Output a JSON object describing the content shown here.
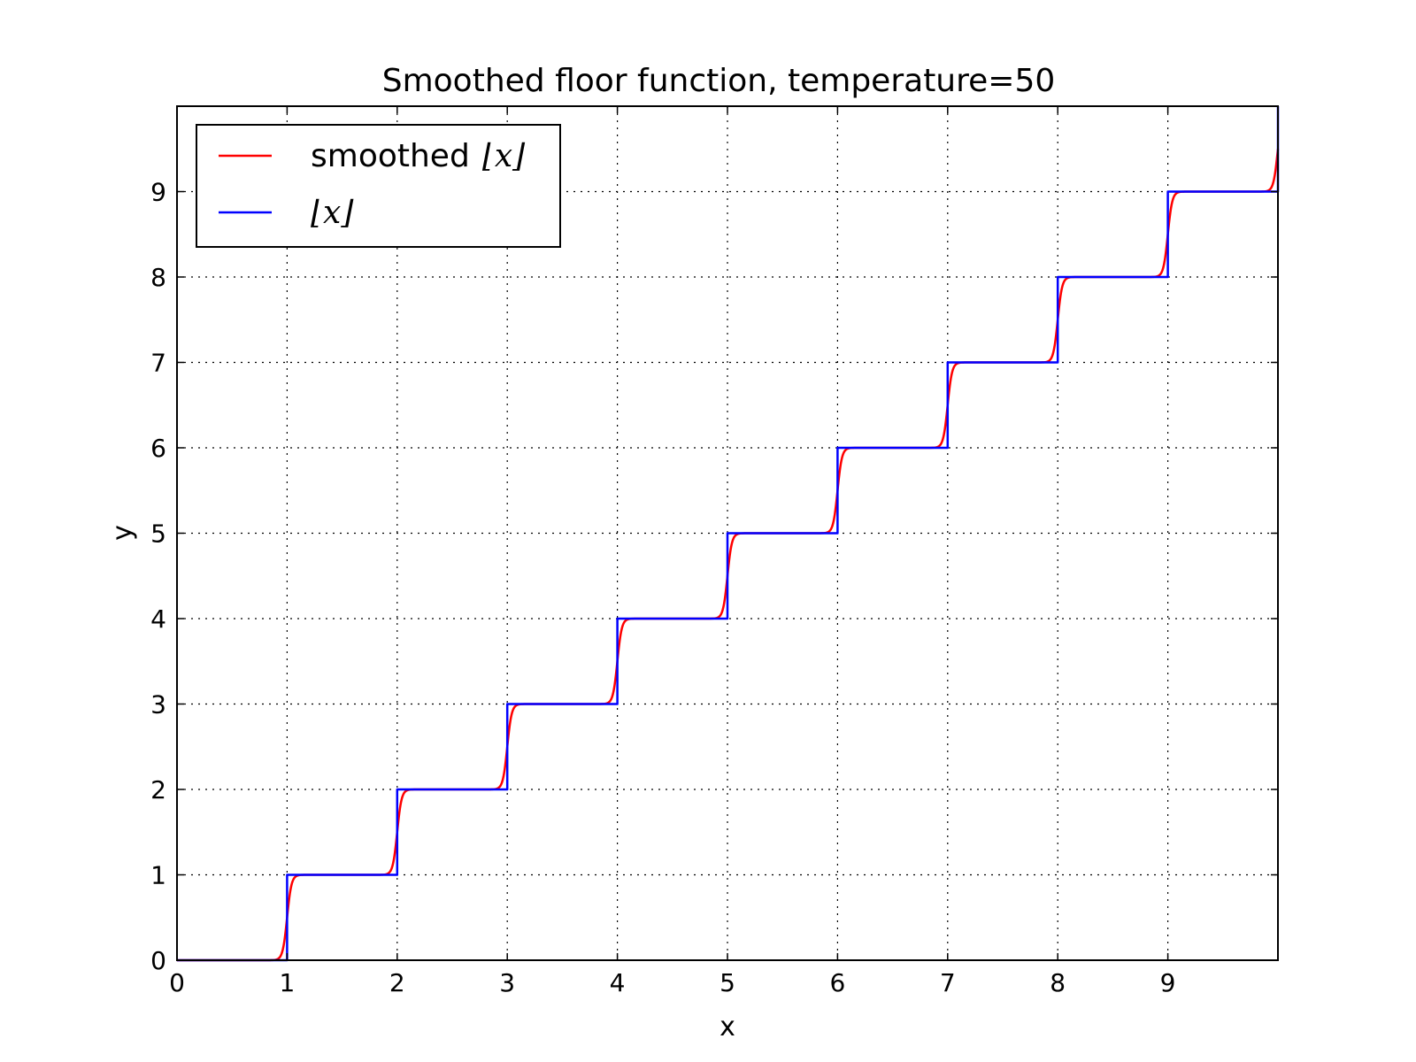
{
  "chart_data": {
    "type": "line",
    "title": "Smoothed floor function, temperature=50",
    "xlabel": "x",
    "ylabel": "y",
    "xlim": [
      0,
      10
    ],
    "ylim": [
      0,
      10
    ],
    "xticks": [
      "0",
      "1",
      "2",
      "3",
      "4",
      "5",
      "6",
      "7",
      "8",
      "9"
    ],
    "yticks": [
      "0",
      "1",
      "2",
      "3",
      "4",
      "5",
      "6",
      "7",
      "8",
      "9"
    ],
    "grid": true,
    "legend_position": "top-left",
    "temperature": 50,
    "series": [
      {
        "name": "smoothed ⌊x⌋",
        "legend_text": "smoothed",
        "legend_math": "⌊x⌋",
        "color": "#ff0000",
        "kind": "smoothed-floor"
      },
      {
        "name": "⌊x⌋",
        "legend_text": "",
        "legend_math": "⌊x⌋",
        "color": "#0000ff",
        "kind": "floor"
      }
    ]
  }
}
